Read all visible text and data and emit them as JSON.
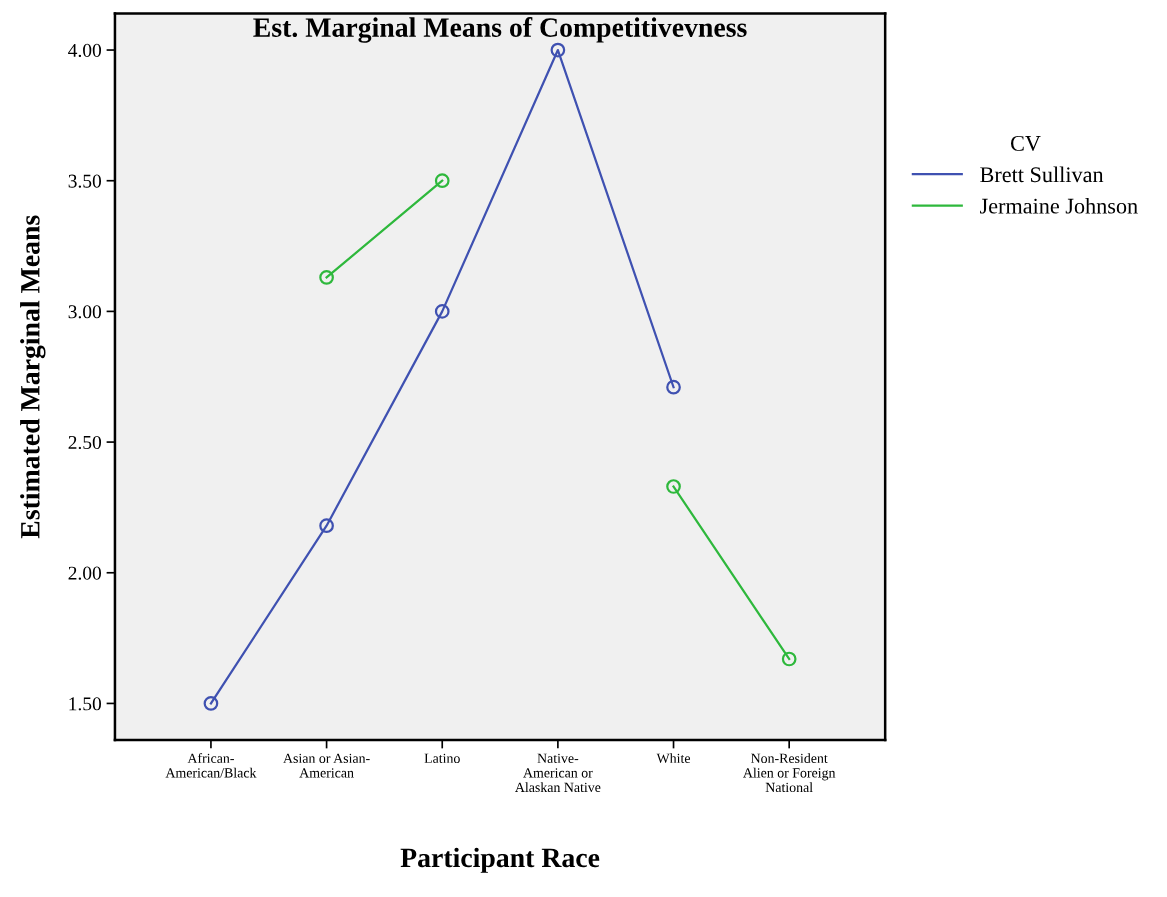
{
  "chart_data": {
    "type": "line",
    "title": "Est. Marginal Means of Competitivevness",
    "xlabel": "Participant Race",
    "ylabel": "Estimated Marginal Means",
    "legend_title": "CV",
    "categories": [
      "African-\nAmerican/Black",
      "Asian or Asian-\nAmerican",
      "Latino",
      "Native-\nAmerican or\nAlaskan Native",
      "White",
      "Non-Resident\nAlien or Foreign\nNational"
    ],
    "series": [
      {
        "name": "Brett Sullivan",
        "color": "#3f51b1",
        "values": [
          1.5,
          2.18,
          3.0,
          4.0,
          2.71,
          null
        ]
      },
      {
        "name": "Jermaine Johnson",
        "color": "#2eb83c",
        "values": [
          null,
          3.13,
          3.5,
          null,
          2.33,
          1.67
        ]
      }
    ],
    "ylim": [
      1.36,
      4.14
    ],
    "yticks": [
      {
        "value": 1.5,
        "label": "1.50"
      },
      {
        "value": 2.0,
        "label": "2.00"
      },
      {
        "value": 2.5,
        "label": "2.50"
      },
      {
        "value": 3.0,
        "label": "3.00"
      },
      {
        "value": 3.5,
        "label": "3.50"
      },
      {
        "value": 4.0,
        "label": "4.00"
      }
    ],
    "marker": "circle",
    "line_style": "solid",
    "legend": "right",
    "grid": false
  }
}
